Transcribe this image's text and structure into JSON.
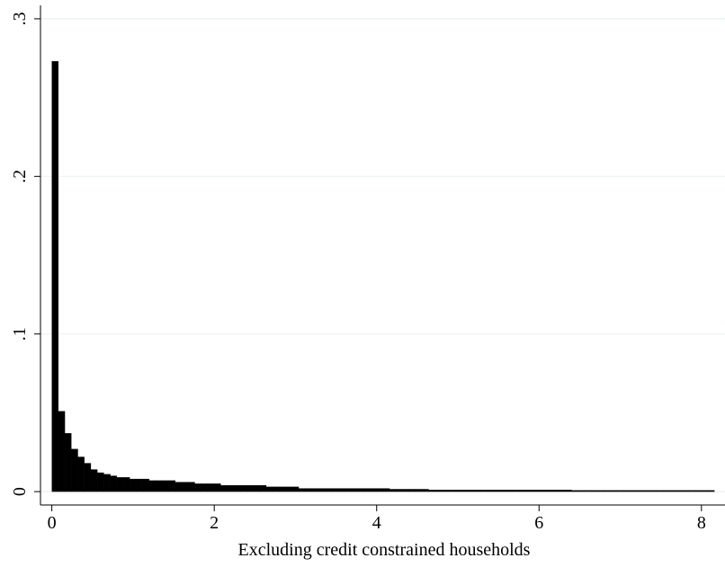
{
  "chart_data": {
    "type": "histogram",
    "x_label": "Excluding credit constrained households",
    "color": "#000000",
    "bins": [
      0,
      0.08,
      0.16,
      0.24,
      0.32,
      0.4,
      0.48,
      0.56,
      0.64,
      0.72,
      0.8,
      0.88,
      0.96,
      1.04,
      1.12,
      1.2,
      1.28,
      1.36,
      1.44,
      1.52,
      1.6,
      1.68,
      1.76,
      1.84,
      1.92,
      2,
      2.08,
      2.16,
      2.24,
      2.32,
      2.4,
      2.48,
      2.56,
      2.64,
      2.72,
      2.8,
      2.88,
      2.96,
      3.04,
      3.12,
      3.2,
      3.28,
      3.36,
      3.44,
      3.52,
      3.6,
      3.68,
      3.76,
      3.84,
      3.92,
      4,
      4.08,
      4.16,
      4.24,
      4.32,
      4.4,
      4.48,
      4.56,
      4.64,
      4.72,
      4.8,
      4.88,
      4.96,
      5.04,
      5.12,
      5.2,
      5.28,
      5.36,
      5.44,
      5.52,
      5.6,
      5.68,
      5.76,
      5.84,
      5.92,
      6,
      6.08,
      6.16,
      6.24,
      6.32,
      6.4,
      6.48,
      6.56,
      6.64,
      6.72,
      6.8,
      6.88,
      6.96,
      7.04,
      7.12,
      7.2,
      7.28,
      7.36,
      7.44,
      7.52,
      7.6,
      7.68,
      7.76,
      7.84,
      7.92,
      8,
      8.08,
      8.16
    ],
    "values": [
      0.273,
      0.051,
      0.037,
      0.027,
      0.022,
      0.018,
      0.014,
      0.012,
      0.011,
      0.01,
      0.009,
      0.009,
      0.008,
      0.008,
      0.008,
      0.007,
      0.007,
      0.007,
      0.007,
      0.006,
      0.006,
      0.006,
      0.005,
      0.005,
      0.005,
      0.005,
      0.004,
      0.004,
      0.004,
      0.004,
      0.004,
      0.004,
      0.004,
      0.003,
      0.003,
      0.003,
      0.003,
      0.003,
      0.002,
      0.002,
      0.002,
      0.002,
      0.002,
      0.002,
      0.002,
      0.002,
      0.002,
      0.002,
      0.002,
      0.002,
      0.002,
      0.002,
      0.0015,
      0.0015,
      0.0015,
      0.0015,
      0.0015,
      0.0015,
      0.001,
      0.001,
      0.001,
      0.001,
      0.001,
      0.001,
      0.001,
      0.001,
      0.001,
      0.001,
      0.001,
      0.001,
      0.001,
      0.001,
      0.001,
      0.001,
      0.001,
      0.001,
      0.001,
      0.001,
      0.001,
      0.001,
      0.0008,
      0.0008,
      0.0008,
      0.0008,
      0.0008,
      0.0008,
      0.0008,
      0.0008,
      0.0008,
      0.0008,
      0.0008,
      0.0008,
      0.0008,
      0.0008,
      0.0008,
      0.0008,
      0.0008,
      0.0008,
      0.0008,
      0.0008,
      0.0008,
      0.0008
    ],
    "xlim": [
      -0.14,
      8.29
    ],
    "xticks": [
      0,
      2,
      4,
      6,
      8
    ],
    "ylim": [
      -0.0085,
      0.3085
    ],
    "yticks": [
      {
        "value": 0,
        "label": "0"
      },
      {
        "value": 0.1,
        "label": ".1"
      },
      {
        "value": 0.2,
        "label": ".2"
      },
      {
        "value": 0.3,
        "label": ".3"
      }
    ],
    "grid": true
  }
}
